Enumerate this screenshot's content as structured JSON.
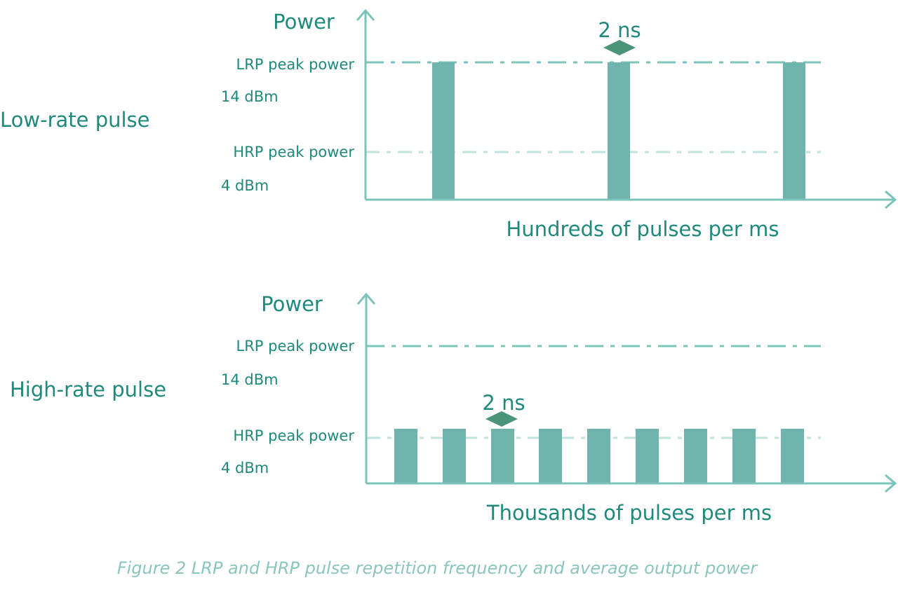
{
  "panels": [
    {
      "row_label": "Low-rate pulse",
      "y_axis_label": "Power",
      "levels": [
        {
          "label": "LRP peak power",
          "value": "14 dBm"
        },
        {
          "label": "HRP peak power",
          "value": "4 dBm"
        }
      ],
      "pulse_width": "2 ns",
      "x_axis_label": "Hundreds of pulses per ms"
    },
    {
      "row_label": "High-rate pulse",
      "y_axis_label": "Power",
      "levels": [
        {
          "label": "LRP peak power",
          "value": "14 dBm"
        },
        {
          "label": "HRP peak power",
          "value": "4 dBm"
        }
      ],
      "pulse_width": "2 ns",
      "x_axis_label": "Thousands of pulses per ms"
    }
  ],
  "caption": "Figure 2 LRP and HRP pulse repetition frequency and average output power"
}
